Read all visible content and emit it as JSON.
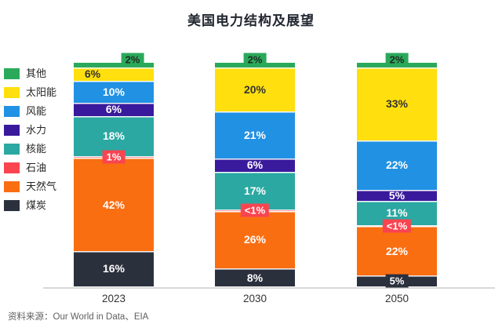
{
  "title": "美国电力结构及展望",
  "source_note": "资料来源：Our World in Data、EIA",
  "chart_data": {
    "type": "bar",
    "subtype": "stacked-100-percent",
    "title": "美国电力结构及展望",
    "categories": [
      "2023",
      "2030",
      "2050"
    ],
    "unit": "%",
    "legend_position": "left",
    "stack_order_top_to_bottom": true,
    "axis_color": "#d8d8d8",
    "series": [
      {
        "name": "其他",
        "color": "#2BA95B",
        "values": [
          2,
          2,
          2
        ],
        "labels": [
          "2%",
          "2%",
          "2%"
        ],
        "label_color": "#1f2a22",
        "badge": [
          true,
          true,
          true
        ],
        "label_dx": [
          24,
          0,
          0
        ]
      },
      {
        "name": "太阳能",
        "color": "#FFDF0D",
        "values": [
          6,
          20,
          33
        ],
        "labels": [
          "6%",
          "20%",
          "33%"
        ],
        "label_color": "#333333",
        "badge": [
          false,
          false,
          false
        ],
        "label_dx": [
          -27,
          0,
          0
        ]
      },
      {
        "name": "风能",
        "color": "#2191E3",
        "values": [
          10,
          21,
          22
        ],
        "labels": [
          "10%",
          "21%",
          "22%"
        ],
        "label_color": "#ffffff",
        "badge": [
          false,
          false,
          false
        ],
        "label_dx": [
          0,
          0,
          0
        ]
      },
      {
        "name": "水力",
        "color": "#3A1A9C",
        "values": [
          6,
          6,
          5
        ],
        "labels": [
          "6%",
          "6%",
          "5%"
        ],
        "label_color": "#ffffff",
        "badge": [
          false,
          false,
          false
        ],
        "label_dx": [
          0,
          0,
          0
        ]
      },
      {
        "name": "核能",
        "color": "#2BA8A2",
        "values": [
          18,
          17,
          11
        ],
        "labels": [
          "18%",
          "17%",
          "11%"
        ],
        "label_color": "#ffffff",
        "badge": [
          false,
          false,
          false
        ],
        "label_dx": [
          0,
          0,
          0
        ]
      },
      {
        "name": "石油",
        "color": "#FA4450",
        "values": [
          1,
          0.5,
          0.5
        ],
        "labels": [
          "1%",
          "<1%",
          "<1%"
        ],
        "label_color": "#ffffff",
        "badge": [
          true,
          true,
          true
        ],
        "label_dx": [
          0,
          0,
          0
        ]
      },
      {
        "name": "天然气",
        "color": "#FA6E12",
        "values": [
          42,
          26,
          22
        ],
        "labels": [
          "42%",
          "26%",
          "22%"
        ],
        "label_color": "#ffffff",
        "badge": [
          false,
          false,
          false
        ],
        "label_dx": [
          0,
          0,
          0
        ]
      },
      {
        "name": "煤炭",
        "color": "#2B303D",
        "values": [
          16,
          8,
          5
        ],
        "labels": [
          "16%",
          "8%",
          "5%"
        ],
        "label_color": "#ffffff",
        "badge": [
          false,
          false,
          true
        ],
        "label_dx": [
          0,
          0,
          0
        ]
      }
    ]
  }
}
